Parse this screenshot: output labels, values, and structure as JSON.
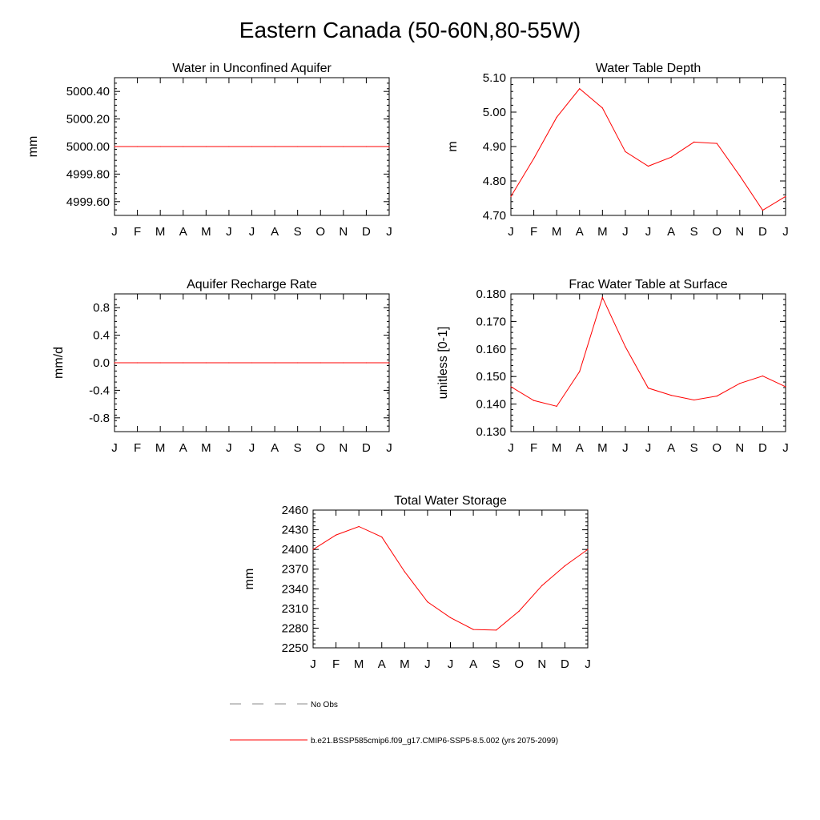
{
  "title": "Eastern Canada (50-60N,80-55W)",
  "colors": {
    "model_line": "#ff0000",
    "obs_line": "#888888",
    "axis": "#000000"
  },
  "chart_data": [
    {
      "id": "unconfined",
      "type": "line",
      "title": "Water in Unconfined Aquifer",
      "ylabel": "mm",
      "xlabel": "",
      "categories": [
        "J",
        "F",
        "M",
        "A",
        "M",
        "J",
        "J",
        "A",
        "S",
        "O",
        "N",
        "D",
        "J"
      ],
      "ylim": [
        4999.5,
        5000.5
      ],
      "yticks": [
        4999.6,
        4999.8,
        5000.0,
        5000.2,
        5000.4
      ],
      "yticklabels": [
        "4999.60",
        "4999.80",
        "5000.00",
        "5000.20",
        "5000.40"
      ],
      "series": [
        {
          "name": "b.e21.BSSP585cmip6.f09_g17.CMIP6-SSP5-8.5.002 (yrs 2075-2099)",
          "values": [
            5000,
            5000,
            5000,
            5000,
            5000,
            5000,
            5000,
            5000,
            5000,
            5000,
            5000,
            5000,
            5000
          ]
        }
      ]
    },
    {
      "id": "wtd",
      "type": "line",
      "title": "Water Table Depth",
      "ylabel": "m",
      "xlabel": "",
      "categories": [
        "J",
        "F",
        "M",
        "A",
        "M",
        "J",
        "J",
        "A",
        "S",
        "O",
        "N",
        "D",
        "J"
      ],
      "ylim": [
        4.7,
        5.1
      ],
      "yticks": [
        4.7,
        4.8,
        4.9,
        5.0,
        5.1
      ],
      "yticklabels": [
        "4.70",
        "4.80",
        "4.90",
        "5.00",
        "5.10"
      ],
      "series": [
        {
          "name": "b.e21.BSSP585cmip6.f09_g17.CMIP6-SSP5-8.5.002 (yrs 2075-2099)",
          "values": [
            4.755,
            4.865,
            4.985,
            5.068,
            5.012,
            4.885,
            4.843,
            4.869,
            4.913,
            4.909,
            4.815,
            4.715,
            4.755
          ]
        }
      ]
    },
    {
      "id": "recharge",
      "type": "line",
      "title": "Aquifer Recharge Rate",
      "ylabel": "mm/d",
      "xlabel": "",
      "categories": [
        "J",
        "F",
        "M",
        "A",
        "M",
        "J",
        "J",
        "A",
        "S",
        "O",
        "N",
        "D",
        "J"
      ],
      "ylim": [
        -1.0,
        1.0
      ],
      "yticks": [
        -0.8,
        -0.4,
        0.0,
        0.4,
        0.8
      ],
      "yticklabels": [
        "-0.8",
        "-0.4",
        "0.0",
        "0.4",
        "0.8"
      ],
      "series": [
        {
          "name": "b.e21.BSSP585cmip6.f09_g17.CMIP6-SSP5-8.5.002 (yrs 2075-2099)",
          "values": [
            0,
            0,
            0,
            0,
            0,
            0,
            0,
            0,
            0,
            0,
            0,
            0,
            0
          ]
        }
      ]
    },
    {
      "id": "frac",
      "type": "line",
      "title": "Frac Water Table at Surface",
      "ylabel": "unitless [0-1]",
      "xlabel": "",
      "categories": [
        "J",
        "F",
        "M",
        "A",
        "M",
        "J",
        "J",
        "A",
        "S",
        "O",
        "N",
        "D",
        "J"
      ],
      "ylim": [
        0.13,
        0.18
      ],
      "yticks": [
        0.13,
        0.14,
        0.15,
        0.16,
        0.17,
        0.18
      ],
      "yticklabels": [
        "0.130",
        "0.140",
        "0.150",
        "0.160",
        "0.170",
        "0.180"
      ],
      "series": [
        {
          "name": "b.e21.BSSP585cmip6.f09_g17.CMIP6-SSP5-8.5.002 (yrs 2075-2099)",
          "values": [
            0.1463,
            0.1413,
            0.1392,
            0.1518,
            0.1787,
            0.1608,
            0.1458,
            0.1432,
            0.1415,
            0.1429,
            0.1475,
            0.1502,
            0.1463
          ]
        }
      ]
    },
    {
      "id": "tws",
      "type": "line",
      "title": "Total Water Storage",
      "ylabel": "mm",
      "xlabel": "",
      "categories": [
        "J",
        "F",
        "M",
        "A",
        "M",
        "J",
        "J",
        "A",
        "S",
        "O",
        "N",
        "D",
        "J"
      ],
      "ylim": [
        2250,
        2460
      ],
      "yticks": [
        2250,
        2280,
        2310,
        2340,
        2370,
        2400,
        2430,
        2460
      ],
      "yticklabels": [
        "2250",
        "2280",
        "2310",
        "2340",
        "2370",
        "2400",
        "2430",
        "2460"
      ],
      "series": [
        {
          "name": "b.e21.BSSP585cmip6.f09_g17.CMIP6-SSP5-8.5.002 (yrs 2075-2099)",
          "values": [
            2400,
            2422,
            2435,
            2419,
            2366,
            2320,
            2296,
            2278,
            2277,
            2306,
            2345,
            2375,
            2400
          ]
        }
      ]
    }
  ],
  "legend": {
    "items": [
      {
        "label": "No Obs",
        "style": "dashed",
        "color": "#888888"
      },
      {
        "label": "b.e21.BSSP585cmip6.f09_g17.CMIP6-SSP5-8.5.002 (yrs 2075-2099)",
        "style": "solid",
        "color": "#ff0000"
      }
    ]
  }
}
